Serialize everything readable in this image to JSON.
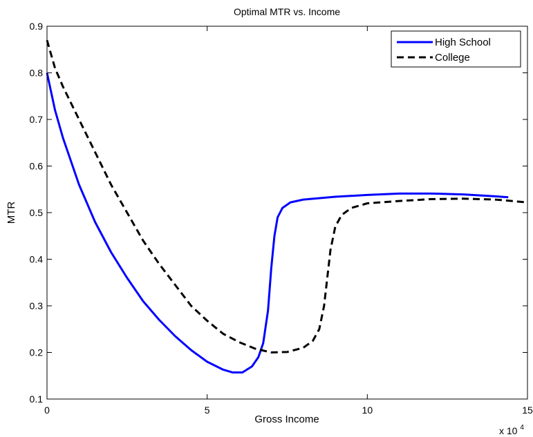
{
  "chart_data": {
    "type": "line",
    "title": "Optimal MTR vs. Income",
    "xlabel": "Gross Income",
    "ylabel": "MTR",
    "x_multiplier_label": "x 10",
    "x_multiplier_exponent": "4",
    "xlim": [
      0,
      15
    ],
    "ylim": [
      0.1,
      0.9
    ],
    "x_ticks": [
      0,
      5,
      10,
      15
    ],
    "y_ticks": [
      0.1,
      0.2,
      0.3,
      0.4,
      0.5,
      0.6,
      0.7,
      0.8,
      0.9
    ],
    "x_tick_labels": [
      "0",
      "5",
      "10",
      "15"
    ],
    "y_tick_labels": [
      "0.1",
      "0.2",
      "0.3",
      "0.4",
      "0.5",
      "0.6",
      "0.7",
      "0.8",
      "0.9"
    ],
    "grid": false,
    "legend_position": "top-right",
    "series": [
      {
        "name": "High School",
        "color": "#0000ff",
        "style": "solid",
        "points": [
          [
            0.0,
            0.8
          ],
          [
            0.25,
            0.72
          ],
          [
            0.5,
            0.66
          ],
          [
            1.0,
            0.56
          ],
          [
            1.5,
            0.48
          ],
          [
            2.0,
            0.415
          ],
          [
            2.5,
            0.36
          ],
          [
            3.0,
            0.31
          ],
          [
            3.5,
            0.27
          ],
          [
            4.0,
            0.235
          ],
          [
            4.5,
            0.205
          ],
          [
            5.0,
            0.18
          ],
          [
            5.5,
            0.163
          ],
          [
            5.8,
            0.157
          ],
          [
            6.1,
            0.157
          ],
          [
            6.4,
            0.17
          ],
          [
            6.6,
            0.19
          ],
          [
            6.75,
            0.22
          ],
          [
            6.9,
            0.29
          ],
          [
            7.0,
            0.38
          ],
          [
            7.1,
            0.45
          ],
          [
            7.2,
            0.49
          ],
          [
            7.35,
            0.51
          ],
          [
            7.6,
            0.522
          ],
          [
            8.0,
            0.528
          ],
          [
            9.0,
            0.534
          ],
          [
            10.0,
            0.538
          ],
          [
            11.0,
            0.541
          ],
          [
            12.0,
            0.541
          ],
          [
            13.0,
            0.539
          ],
          [
            14.0,
            0.535
          ],
          [
            14.4,
            0.533
          ]
        ]
      },
      {
        "name": "College",
        "color": "#000000",
        "style": "dashed",
        "points": [
          [
            0.0,
            0.87
          ],
          [
            0.25,
            0.81
          ],
          [
            0.5,
            0.77
          ],
          [
            1.0,
            0.7
          ],
          [
            1.5,
            0.63
          ],
          [
            2.0,
            0.56
          ],
          [
            2.5,
            0.5
          ],
          [
            3.0,
            0.44
          ],
          [
            3.5,
            0.39
          ],
          [
            4.0,
            0.345
          ],
          [
            4.5,
            0.3
          ],
          [
            5.0,
            0.268
          ],
          [
            5.5,
            0.24
          ],
          [
            6.0,
            0.222
          ],
          [
            6.5,
            0.208
          ],
          [
            7.0,
            0.2
          ],
          [
            7.5,
            0.201
          ],
          [
            8.0,
            0.21
          ],
          [
            8.3,
            0.225
          ],
          [
            8.5,
            0.25
          ],
          [
            8.65,
            0.3
          ],
          [
            8.75,
            0.36
          ],
          [
            8.85,
            0.42
          ],
          [
            9.0,
            0.47
          ],
          [
            9.2,
            0.495
          ],
          [
            9.5,
            0.51
          ],
          [
            10.0,
            0.52
          ],
          [
            11.0,
            0.525
          ],
          [
            12.0,
            0.529
          ],
          [
            13.0,
            0.53
          ],
          [
            14.0,
            0.528
          ],
          [
            15.0,
            0.522
          ]
        ]
      }
    ]
  }
}
